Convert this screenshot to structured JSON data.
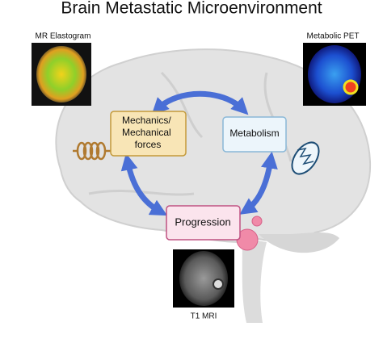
{
  "title": "Brain Metastatic Microenvironment",
  "images": [
    {
      "label": "MR Elastogram"
    },
    {
      "label": "Metabolic PET"
    },
    {
      "label": "T1 MRI"
    }
  ],
  "nodes": [
    {
      "lines": [
        "Mechanics/",
        "Mechanical",
        "forces"
      ]
    },
    {
      "lines": [
        "Metabolism"
      ]
    },
    {
      "lines": [
        "Progression"
      ]
    }
  ]
}
